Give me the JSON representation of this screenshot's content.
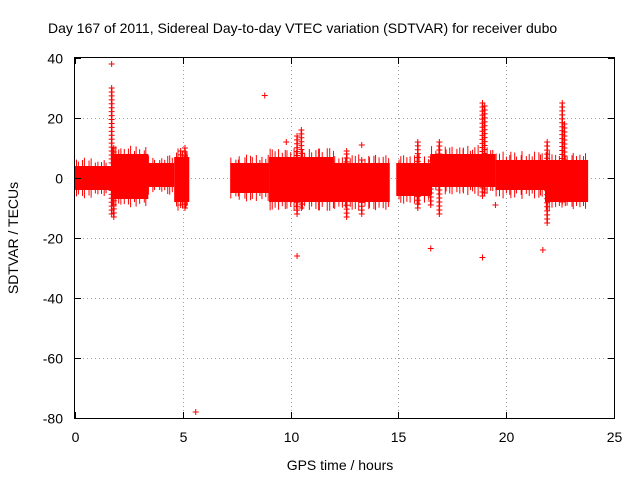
{
  "chart_data": {
    "type": "scatter",
    "title": "Day 167 of 2011, Sidereal Day-to-day VTEC variation (SDTVAR) for receiver dubo",
    "xlabel": "GPS time / hours",
    "ylabel": "SDTVAR / TECUs",
    "xlim": [
      0,
      25
    ],
    "ylim": [
      -80,
      40
    ],
    "xticks": [
      "0",
      "5",
      "10",
      "15",
      "20",
      "25"
    ],
    "yticks": [
      "40",
      "20",
      "0",
      "-20",
      "-40",
      "-60",
      "-80"
    ],
    "grid": true,
    "series_color": "#ff0000",
    "marker": "plus",
    "dense_segments": [
      {
        "x_start": 0.0,
        "x_end": 1.7,
        "low": -4,
        "high": 4
      },
      {
        "x_start": 1.7,
        "x_end": 3.4,
        "low": -7,
        "high": 8
      },
      {
        "x_start": 3.4,
        "x_end": 4.6,
        "low": -3,
        "high": 5
      },
      {
        "x_start": 4.6,
        "x_end": 5.3,
        "low": -8,
        "high": 7
      },
      {
        "x_start": 7.2,
        "x_end": 9.0,
        "low": -5,
        "high": 5
      },
      {
        "x_start": 9.0,
        "x_end": 12.0,
        "low": -8,
        "high": 7
      },
      {
        "x_start": 12.0,
        "x_end": 14.6,
        "low": -8,
        "high": 5
      },
      {
        "x_start": 14.9,
        "x_end": 16.5,
        "low": -6,
        "high": 5
      },
      {
        "x_start": 16.5,
        "x_end": 19.5,
        "low": -3,
        "high": 8
      },
      {
        "x_start": 19.5,
        "x_end": 21.8,
        "low": -4,
        "high": 6
      },
      {
        "x_start": 21.8,
        "x_end": 23.8,
        "low": -8,
        "high": 6
      }
    ],
    "spikes": [
      {
        "x": 1.7,
        "low": -12,
        "high": 30
      },
      {
        "x": 1.8,
        "low": -13,
        "high": 10
      },
      {
        "x": 4.9,
        "low": -9,
        "high": 9
      },
      {
        "x": 5.1,
        "low": -10,
        "high": 10
      },
      {
        "x": 10.3,
        "low": -12,
        "high": 14
      },
      {
        "x": 10.5,
        "low": -10,
        "high": 16
      },
      {
        "x": 12.6,
        "low": -13,
        "high": 8
      },
      {
        "x": 13.3,
        "low": -12,
        "high": 6
      },
      {
        "x": 15.9,
        "low": -10,
        "high": 12
      },
      {
        "x": 16.5,
        "low": -9,
        "high": 7
      },
      {
        "x": 16.9,
        "low": -12,
        "high": 12
      },
      {
        "x": 18.9,
        "low": -6,
        "high": 25
      },
      {
        "x": 19.0,
        "low": -5,
        "high": 24
      },
      {
        "x": 21.9,
        "low": -15,
        "high": 12
      },
      {
        "x": 22.6,
        "low": -8,
        "high": 25
      },
      {
        "x": 22.7,
        "low": -6,
        "high": 18
      }
    ],
    "outliers": [
      {
        "x": 1.7,
        "y": 38
      },
      {
        "x": 8.8,
        "y": 27.5
      },
      {
        "x": 9.8,
        "y": 12
      },
      {
        "x": 10.3,
        "y": -26
      },
      {
        "x": 13.3,
        "y": 11
      },
      {
        "x": 16.5,
        "y": -23.5
      },
      {
        "x": 18.9,
        "y": -26.5
      },
      {
        "x": 19.5,
        "y": -9
      },
      {
        "x": 21.7,
        "y": -24
      },
      {
        "x": 5.6,
        "y": -78
      },
      {
        "x": 12.6,
        "y": 9
      }
    ]
  }
}
